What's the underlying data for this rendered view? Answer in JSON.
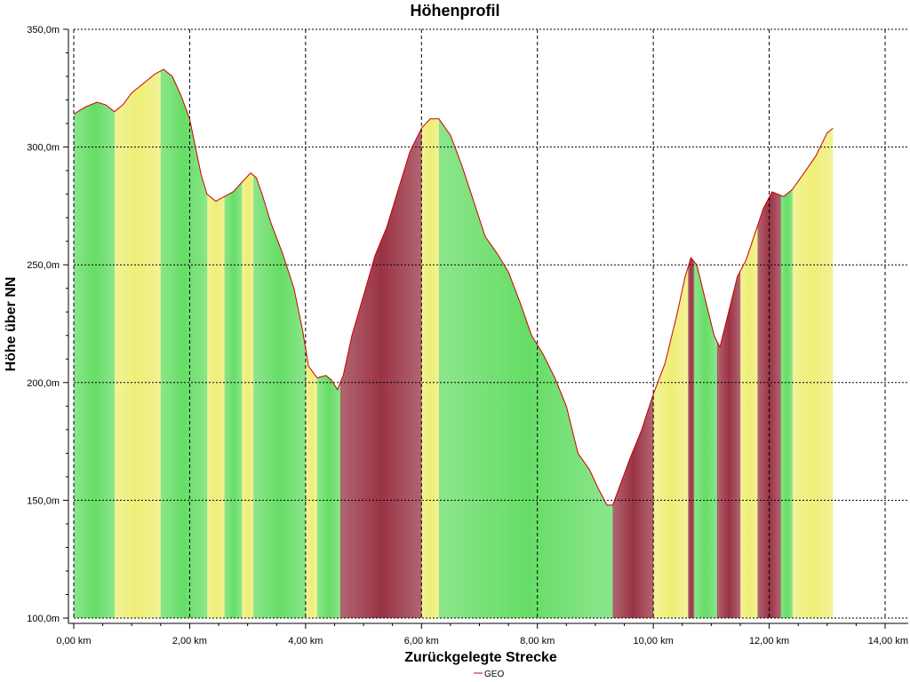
{
  "chart_data": {
    "type": "area",
    "title": "Höhenprofil",
    "xlabel": "Zurückgelegte Strecke",
    "ylabel": "Höhe über NN",
    "xlim": [
      0,
      14
    ],
    "ylim": [
      100,
      350
    ],
    "x_ticks": [
      0,
      2,
      4,
      6,
      8,
      10,
      12,
      14
    ],
    "x_tick_labels": [
      "0,00 km",
      "2,00 km",
      "4,00 km",
      "6,00 km",
      "8,00 km",
      "10,00 km",
      "12,00 km",
      "14,00 km"
    ],
    "y_ticks": [
      100,
      150,
      200,
      250,
      300,
      350
    ],
    "y_tick_labels": [
      "100,0m",
      "150,0m",
      "200,0m",
      "250,0m",
      "300,0m",
      "350,0m"
    ],
    "grid": true,
    "legend_position": "bottom-center",
    "colors": {
      "line": "#cc0000",
      "green": "#66dd66",
      "yellow": "#eeee77",
      "maroon": "#993344",
      "grid": "#000000"
    },
    "series": [
      {
        "name": "GEO",
        "points": [
          [
            0.0,
            314
          ],
          [
            0.2,
            317
          ],
          [
            0.4,
            319
          ],
          [
            0.55,
            318
          ],
          [
            0.7,
            315
          ],
          [
            0.85,
            318
          ],
          [
            1.0,
            323
          ],
          [
            1.2,
            327
          ],
          [
            1.4,
            331
          ],
          [
            1.55,
            333
          ],
          [
            1.7,
            330
          ],
          [
            1.85,
            322
          ],
          [
            2.0,
            312
          ],
          [
            2.1,
            300
          ],
          [
            2.2,
            288
          ],
          [
            2.3,
            280
          ],
          [
            2.45,
            277
          ],
          [
            2.6,
            279
          ],
          [
            2.75,
            281
          ],
          [
            2.9,
            285
          ],
          [
            3.05,
            289
          ],
          [
            3.15,
            287
          ],
          [
            3.25,
            280
          ],
          [
            3.4,
            268
          ],
          [
            3.6,
            255
          ],
          [
            3.8,
            240
          ],
          [
            3.95,
            222
          ],
          [
            4.05,
            207
          ],
          [
            4.2,
            202
          ],
          [
            4.35,
            203
          ],
          [
            4.45,
            201
          ],
          [
            4.55,
            197
          ],
          [
            4.65,
            203
          ],
          [
            4.8,
            220
          ],
          [
            5.0,
            237
          ],
          [
            5.2,
            254
          ],
          [
            5.4,
            266
          ],
          [
            5.6,
            282
          ],
          [
            5.8,
            298
          ],
          [
            6.0,
            308
          ],
          [
            6.15,
            312
          ],
          [
            6.3,
            312
          ],
          [
            6.5,
            305
          ],
          [
            6.7,
            292
          ],
          [
            6.9,
            277
          ],
          [
            7.1,
            262
          ],
          [
            7.3,
            255
          ],
          [
            7.5,
            247
          ],
          [
            7.7,
            234
          ],
          [
            7.9,
            220
          ],
          [
            8.1,
            212
          ],
          [
            8.3,
            202
          ],
          [
            8.5,
            190
          ],
          [
            8.7,
            170
          ],
          [
            8.9,
            163
          ],
          [
            9.05,
            155
          ],
          [
            9.2,
            148
          ],
          [
            9.3,
            148
          ],
          [
            9.45,
            158
          ],
          [
            9.6,
            168
          ],
          [
            9.8,
            180
          ],
          [
            10.0,
            195
          ],
          [
            10.2,
            208
          ],
          [
            10.4,
            228
          ],
          [
            10.55,
            245
          ],
          [
            10.65,
            253
          ],
          [
            10.75,
            250
          ],
          [
            10.9,
            235
          ],
          [
            11.05,
            220
          ],
          [
            11.15,
            215
          ],
          [
            11.3,
            230
          ],
          [
            11.45,
            245
          ],
          [
            11.6,
            252
          ],
          [
            11.75,
            263
          ],
          [
            11.9,
            274
          ],
          [
            12.05,
            281
          ],
          [
            12.25,
            279
          ],
          [
            12.4,
            282
          ],
          [
            12.6,
            289
          ],
          [
            12.8,
            296
          ],
          [
            13.0,
            306
          ],
          [
            13.1,
            308
          ]
        ]
      }
    ],
    "bands": [
      [
        0.0,
        0.7,
        "green"
      ],
      [
        0.7,
        1.5,
        "yellow"
      ],
      [
        1.5,
        2.3,
        "green"
      ],
      [
        2.3,
        2.6,
        "yellow"
      ],
      [
        2.6,
        2.9,
        "green"
      ],
      [
        2.9,
        3.1,
        "yellow"
      ],
      [
        3.1,
        4.0,
        "green"
      ],
      [
        4.0,
        4.2,
        "yellow"
      ],
      [
        4.2,
        4.6,
        "green"
      ],
      [
        4.6,
        6.0,
        "maroon"
      ],
      [
        6.0,
        6.3,
        "yellow"
      ],
      [
        6.3,
        9.3,
        "green"
      ],
      [
        9.3,
        10.0,
        "maroon"
      ],
      [
        10.0,
        10.6,
        "yellow"
      ],
      [
        10.6,
        10.7,
        "maroon"
      ],
      [
        10.7,
        11.1,
        "green"
      ],
      [
        11.1,
        11.5,
        "maroon"
      ],
      [
        11.5,
        11.8,
        "yellow"
      ],
      [
        11.8,
        12.2,
        "maroon"
      ],
      [
        12.2,
        12.4,
        "green"
      ],
      [
        12.4,
        13.1,
        "yellow"
      ]
    ]
  }
}
